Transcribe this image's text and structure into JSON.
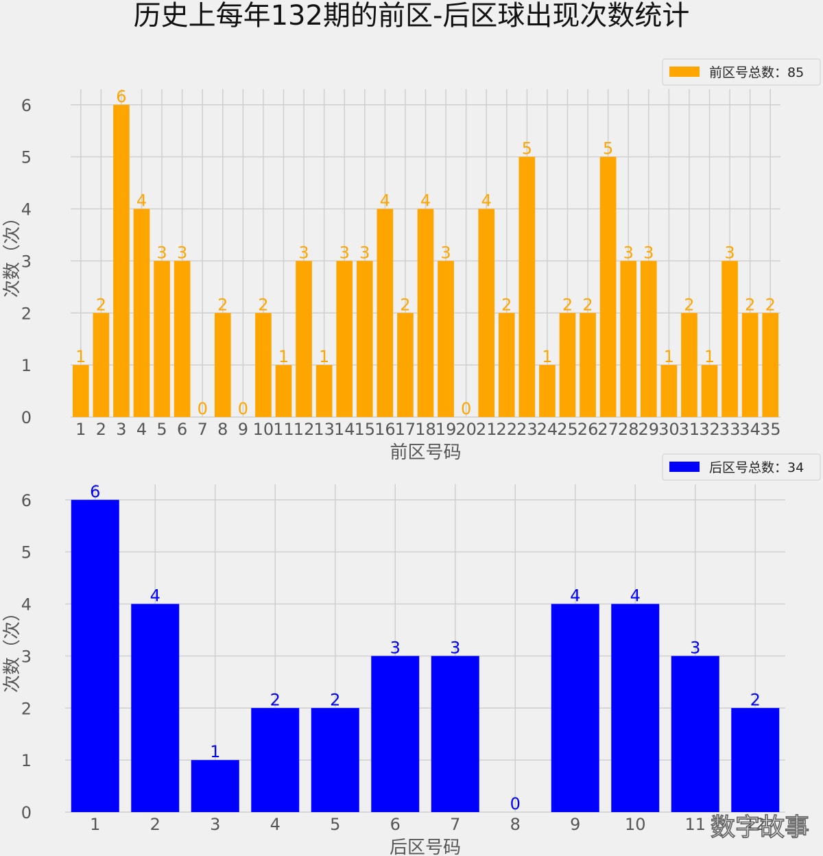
{
  "title": "历史上每年132期的前区-后区球出现次数统计",
  "watermark": "数字故事",
  "chart_data": [
    {
      "type": "bar",
      "xlabel": "前区号码",
      "ylabel": "次数（次）",
      "legend_label": "前区号总数：85",
      "legend_position": "top-right",
      "color": "#FFA500",
      "grid": true,
      "ylim": [
        0,
        6.3
      ],
      "yticks": [
        "0",
        "1",
        "2",
        "3",
        "4",
        "5",
        "6"
      ],
      "categories": [
        "1",
        "2",
        "3",
        "4",
        "5",
        "6",
        "7",
        "8",
        "9",
        "10",
        "11",
        "12",
        "13",
        "14",
        "15",
        "16",
        "17",
        "18",
        "19",
        "20",
        "21",
        "22",
        "23",
        "24",
        "25",
        "26",
        "27",
        "28",
        "29",
        "30",
        "31",
        "32",
        "33",
        "34",
        "35"
      ],
      "values": [
        1,
        2,
        6,
        4,
        3,
        3,
        0,
        2,
        0,
        2,
        1,
        3,
        1,
        3,
        3,
        4,
        2,
        4,
        3,
        0,
        4,
        2,
        5,
        1,
        2,
        2,
        5,
        3,
        3,
        1,
        2,
        1,
        3,
        2,
        2
      ]
    },
    {
      "type": "bar",
      "xlabel": "后区号码",
      "ylabel": "次数（次）",
      "legend_label": "后区号总数：34",
      "legend_position": "top-right",
      "color": "#0000FF",
      "grid": true,
      "ylim": [
        0,
        6.3
      ],
      "yticks": [
        "0",
        "1",
        "2",
        "3",
        "4",
        "5",
        "6"
      ],
      "categories": [
        "1",
        "2",
        "3",
        "4",
        "5",
        "6",
        "7",
        "8",
        "9",
        "10",
        "11",
        "12"
      ],
      "values": [
        6,
        4,
        1,
        2,
        2,
        3,
        3,
        0,
        4,
        4,
        3,
        2
      ]
    }
  ]
}
